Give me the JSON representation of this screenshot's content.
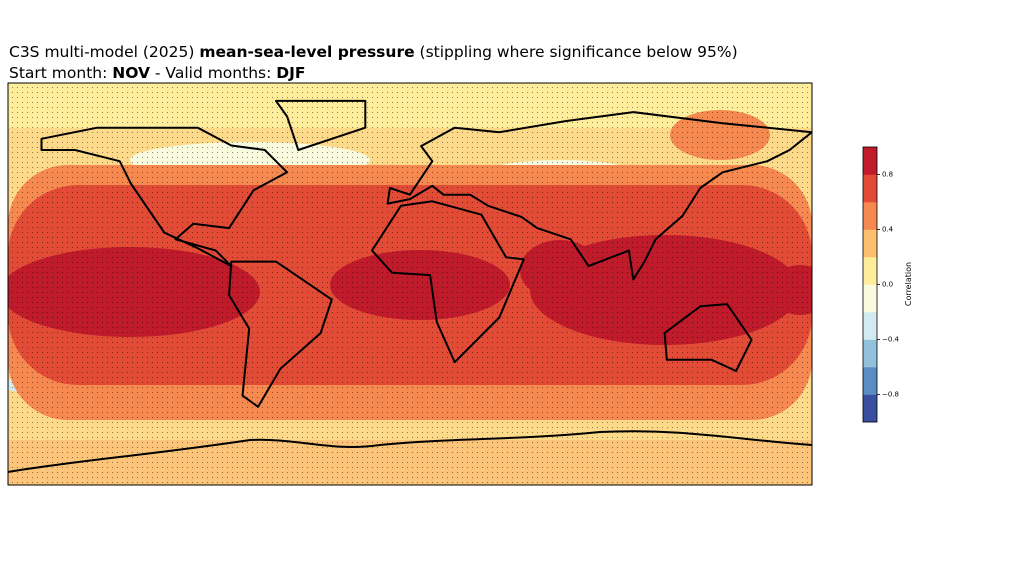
{
  "chart_data": {
    "type": "map",
    "title": [
      "C3S multi-model (2025) ",
      "mean-sea-level pressure",
      " (stippling where significance below 95%)"
    ],
    "subtitle": [
      "Start month: ",
      "NOV",
      " - Valid months: ",
      "DJF"
    ],
    "colorbar": {
      "label": "Correlation",
      "clim": [
        -1,
        1
      ],
      "ticks": [
        -0.8,
        {
          "value": -0.4,
          "label": "−0.4"
        },
        {
          "value": 0,
          "label": "0.0"
        },
        0.4,
        0.8
      ],
      "tick_labels_neg08": "−0.8",
      "colors": [
        "#3a4fa0",
        "#5b8cc2",
        "#93c1dc",
        "#d2eaf0",
        "#f8fbde",
        "#feee9c",
        "#fdbe6e",
        "#f6894f",
        "#e24c37",
        "#c01b2a"
      ]
    }
  }
}
